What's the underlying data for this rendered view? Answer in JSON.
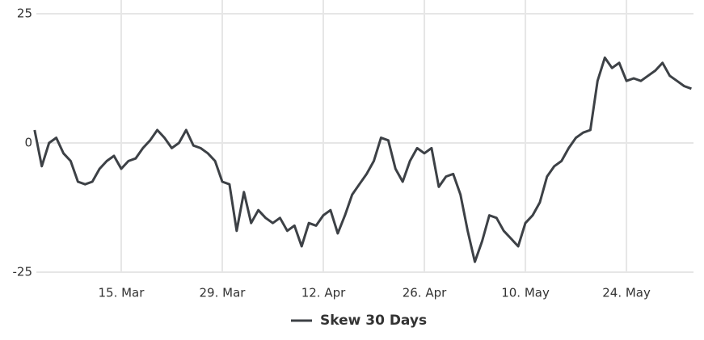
{
  "chart_data": {
    "type": "line",
    "categories": [
      null,
      null,
      null,
      null,
      null,
      null,
      null,
      null,
      null,
      null,
      null,
      null,
      "15. Mar",
      null,
      null,
      null,
      null,
      null,
      null,
      null,
      null,
      null,
      null,
      null,
      null,
      null,
      "29. Mar",
      null,
      null,
      null,
      null,
      null,
      null,
      null,
      null,
      null,
      null,
      null,
      null,
      null,
      "12. Apr",
      null,
      null,
      null,
      null,
      null,
      null,
      null,
      null,
      null,
      null,
      null,
      null,
      null,
      "26. Apr",
      null,
      null,
      null,
      null,
      null,
      null,
      null,
      null,
      null,
      null,
      null,
      null,
      null,
      "10. May",
      null,
      null,
      null,
      null,
      null,
      null,
      null,
      null,
      null,
      null,
      null,
      null,
      null,
      "24. May",
      null,
      null,
      null,
      null,
      null,
      null,
      null,
      null,
      null
    ],
    "series": [
      {
        "name": "Skew 30 Days",
        "color": "#3d4146",
        "values": [
          2.5,
          -4.5,
          0,
          1,
          -2,
          -3.5,
          -7.5,
          -8,
          -7.5,
          -5,
          -3.5,
          -2.5,
          -5,
          -3.5,
          -3,
          -1,
          0.5,
          2.5,
          1,
          -1,
          0,
          2.5,
          -0.5,
          -1,
          -2,
          -3.5,
          -7.5,
          -8,
          -17,
          -9.5,
          -15.5,
          -13,
          -14.5,
          -15.5,
          -14.5,
          -17,
          -16,
          -20,
          -15.5,
          -16,
          -14,
          -13,
          -17.5,
          -14,
          -10,
          -8,
          -6,
          -3.5,
          1,
          0.5,
          -5,
          -7.5,
          -3.5,
          -1,
          -2,
          -1,
          -8.5,
          -6.5,
          -6,
          -10,
          -17,
          -23,
          -19,
          -14,
          -14.5,
          -17,
          -18.5,
          -20,
          -15.5,
          -14,
          -11.5,
          -6.5,
          -4.5,
          -3.5,
          -1,
          1,
          2,
          2.5,
          12,
          16.5,
          14.5,
          15.5,
          12,
          12.5,
          12,
          13,
          14,
          15.5,
          13,
          12,
          11,
          10.5
        ]
      }
    ],
    "ylim": [
      -25,
      25
    ],
    "yticks": [
      -25,
      0,
      25
    ],
    "grid": true,
    "legend": "bottom"
  }
}
